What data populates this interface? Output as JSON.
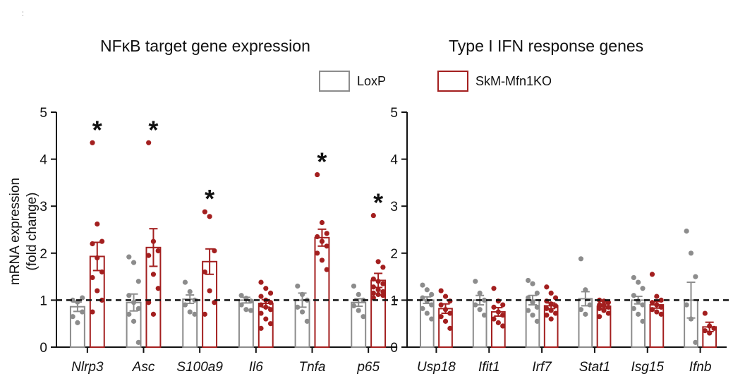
{
  "corner_mark": ":",
  "legend": [
    {
      "label": "LoxP",
      "color": "#8c8c8c"
    },
    {
      "label": "SkM-Mfn1KO",
      "color": "#a31f1f"
    }
  ],
  "ylabel": [
    "mRNA expression",
    "(fold change)"
  ],
  "colors": {
    "loxp": "#8c8c8c",
    "ko": "#a31f1f",
    "axis": "#111111",
    "dots_loxp": "#8c8c8c",
    "dots_ko": "#a31f1f"
  },
  "chart_data": [
    {
      "type": "bar",
      "title": "NFκB target gene expression",
      "ylim": [
        0,
        5
      ],
      "yticks": [
        "0",
        "1",
        "2",
        "3",
        "4",
        "5"
      ],
      "reference_line": 1,
      "categories": [
        "Nlrp3",
        "Asc",
        "S100a9",
        "Il6",
        "Tnfa",
        "p65"
      ],
      "series": [
        {
          "name": "LoxP",
          "values": [
            0.86,
            0.95,
            1.02,
            1.0,
            1.0,
            0.95
          ],
          "sem": [
            0.1,
            0.18,
            0.09,
            0.06,
            0.15,
            0.08
          ],
          "points": [
            [
              1.0,
              0.96,
              0.75,
              0.65,
              0.52,
              1.05
            ],
            [
              1.92,
              1.8,
              1.4,
              1.1,
              0.95,
              0.82,
              0.7,
              0.55,
              0.1
            ],
            [
              1.38,
              1.18,
              1.0,
              0.9,
              0.75,
              0.7
            ],
            [
              1.1,
              1.04,
              0.98,
              0.9,
              0.8,
              0.78
            ],
            [
              1.3,
              1.12,
              1.0,
              0.85,
              0.75,
              0.55
            ],
            [
              1.3,
              1.12,
              1.0,
              0.88,
              0.78,
              0.65
            ]
          ]
        },
        {
          "name": "SkM-Mfn1KO",
          "values": [
            1.93,
            2.12,
            1.82,
            0.93,
            2.33,
            1.42
          ],
          "sem": [
            0.3,
            0.4,
            0.27,
            0.08,
            0.18,
            0.15
          ],
          "points": [
            [
              4.35,
              2.62,
              2.25,
              2.2,
              1.9,
              1.6,
              1.48,
              1.2,
              1.0,
              0.75
            ],
            [
              4.35,
              2.25,
              2.05,
              1.95,
              1.55,
              1.25,
              0.95,
              0.7
            ],
            [
              2.88,
              2.78,
              2.05,
              1.6,
              1.2,
              0.95,
              0.7
            ],
            [
              1.38,
              1.25,
              1.15,
              1.08,
              1.0,
              0.95,
              0.9,
              0.85,
              0.8,
              0.72,
              0.6,
              0.5,
              0.4
            ],
            [
              3.67,
              2.65,
              2.42,
              2.35,
              2.25,
              2.15,
              2.0,
              1.85,
              1.65
            ],
            [
              2.8,
              1.82,
              1.7,
              1.45,
              1.4,
              1.35,
              1.28,
              1.22,
              1.18,
              1.15,
              1.12,
              1.1,
              1.05
            ]
          ]
        }
      ],
      "annotations": [
        {
          "category": "Nlrp3",
          "text": "*"
        },
        {
          "category": "Asc",
          "text": "*"
        },
        {
          "category": "S100a9",
          "text": "*"
        },
        {
          "category": "Tnfa",
          "text": "*"
        },
        {
          "category": "p65",
          "text": "*"
        }
      ]
    },
    {
      "type": "bar",
      "title": "Type I IFN response genes",
      "ylim": [
        0,
        5
      ],
      "yticks": [
        "0",
        "1",
        "2",
        "3",
        "4",
        "5"
      ],
      "reference_line": 1,
      "categories": [
        "Usp18",
        "Ifit1",
        "Irf7",
        "Stat1",
        "Isg15",
        "Ifnb"
      ],
      "series": [
        {
          "name": "LoxP",
          "values": [
            1.0,
            1.0,
            1.0,
            1.03,
            1.0,
            1.0
          ],
          "sem": [
            0.07,
            0.1,
            0.1,
            0.15,
            0.08,
            0.38
          ],
          "points": [
            [
              1.32,
              1.22,
              1.12,
              1.05,
              0.98,
              0.9,
              0.82,
              0.72,
              0.6
            ],
            [
              1.4,
              1.15,
              1.0,
              0.9,
              0.8,
              0.68
            ],
            [
              1.42,
              1.35,
              1.15,
              1.05,
              0.95,
              0.85,
              0.78,
              0.68,
              0.55
            ],
            [
              1.88,
              1.22,
              0.9,
              0.8,
              0.7
            ],
            [
              1.48,
              1.38,
              1.25,
              1.1,
              0.98,
              0.9,
              0.82,
              0.7,
              0.55
            ],
            [
              2.47,
              2.0,
              1.5,
              0.9,
              0.6,
              0.1
            ]
          ]
        },
        {
          "name": "SkM-Mfn1KO",
          "values": [
            0.82,
            0.75,
            0.88,
            0.87,
            0.9,
            0.43
          ],
          "sem": [
            0.1,
            0.09,
            0.06,
            0.05,
            0.07,
            0.1
          ],
          "points": [
            [
              1.2,
              1.08,
              0.98,
              0.9,
              0.8,
              0.72,
              0.65,
              0.55,
              0.4
            ],
            [
              1.25,
              0.98,
              0.9,
              0.85,
              0.75,
              0.68,
              0.6,
              0.52,
              0.45
            ],
            [
              1.28,
              1.15,
              1.05,
              0.98,
              0.92,
              0.88,
              0.82,
              0.78,
              0.72,
              0.68,
              0.6
            ],
            [
              1.0,
              0.98,
              0.95,
              0.9,
              0.88,
              0.85,
              0.82,
              0.78,
              0.72,
              0.65
            ],
            [
              1.55,
              1.08,
              1.0,
              0.95,
              0.9,
              0.85,
              0.8,
              0.75,
              0.7
            ],
            [
              0.72,
              0.45,
              0.4,
              0.35,
              0.3
            ]
          ]
        }
      ],
      "annotations": []
    }
  ]
}
